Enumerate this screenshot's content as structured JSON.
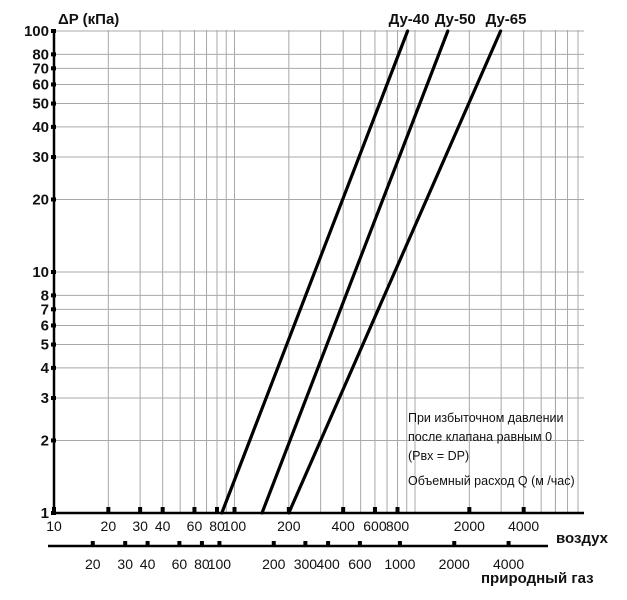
{
  "chart_data": {
    "type": "line",
    "y_axis": {
      "title": "ΔP (кПа)",
      "scale": "log",
      "range": [
        1,
        100
      ],
      "ticks": [
        1,
        2,
        3,
        4,
        5,
        6,
        7,
        8,
        10,
        20,
        30,
        40,
        50,
        60,
        70,
        80,
        100
      ],
      "tick_labels": [
        "1",
        "2",
        "3",
        "4",
        "5",
        "6",
        "7",
        "8",
        "10",
        "20",
        "30",
        "40",
        "50",
        "60",
        "70",
        "80",
        "100"
      ]
    },
    "x_axis": {
      "title": "воздух",
      "scale": "log",
      "range": [
        10,
        6000
      ],
      "ticks": [
        10,
        20,
        30,
        40,
        60,
        80,
        100,
        200,
        400,
        600,
        800,
        2000,
        4000
      ],
      "tick_labels": [
        "10",
        "20",
        "30",
        "40",
        "60",
        "80",
        "100",
        "200",
        "400",
        "600",
        "800",
        "2000",
        "4000"
      ]
    },
    "x_axis_secondary": {
      "title": "природный газ",
      "scale": "log",
      "ticks": [
        20,
        30,
        40,
        60,
        80,
        100,
        200,
        300,
        400,
        600,
        1000,
        2000,
        4000
      ],
      "tick_labels": [
        "20",
        "30",
        "40",
        "60",
        "80",
        "100",
        "200",
        "300",
        "400",
        "600",
        "1000",
        "2000",
        "4000"
      ],
      "tick_x_on_primary": [
        16.4,
        24.8,
        33,
        49.5,
        66,
        82.5,
        165,
        247,
        330,
        495,
        825,
        1650,
        3300
      ]
    },
    "series": [
      {
        "name": "Ду-40",
        "x": [
          85,
          910
        ],
        "y": [
          1,
          100
        ]
      },
      {
        "name": "Ду-50",
        "x": [
          142,
          1520
        ],
        "y": [
          1,
          100
        ]
      },
      {
        "name": "Ду-65",
        "x": [
          200,
          2980
        ],
        "y": [
          1,
          100
        ]
      }
    ],
    "grid": true,
    "annotation_lines": [
      "При избыточном давлении",
      "после клапана равным 0",
      "(Pвх = DP)",
      "Объемный расход Q (м /час)"
    ]
  }
}
